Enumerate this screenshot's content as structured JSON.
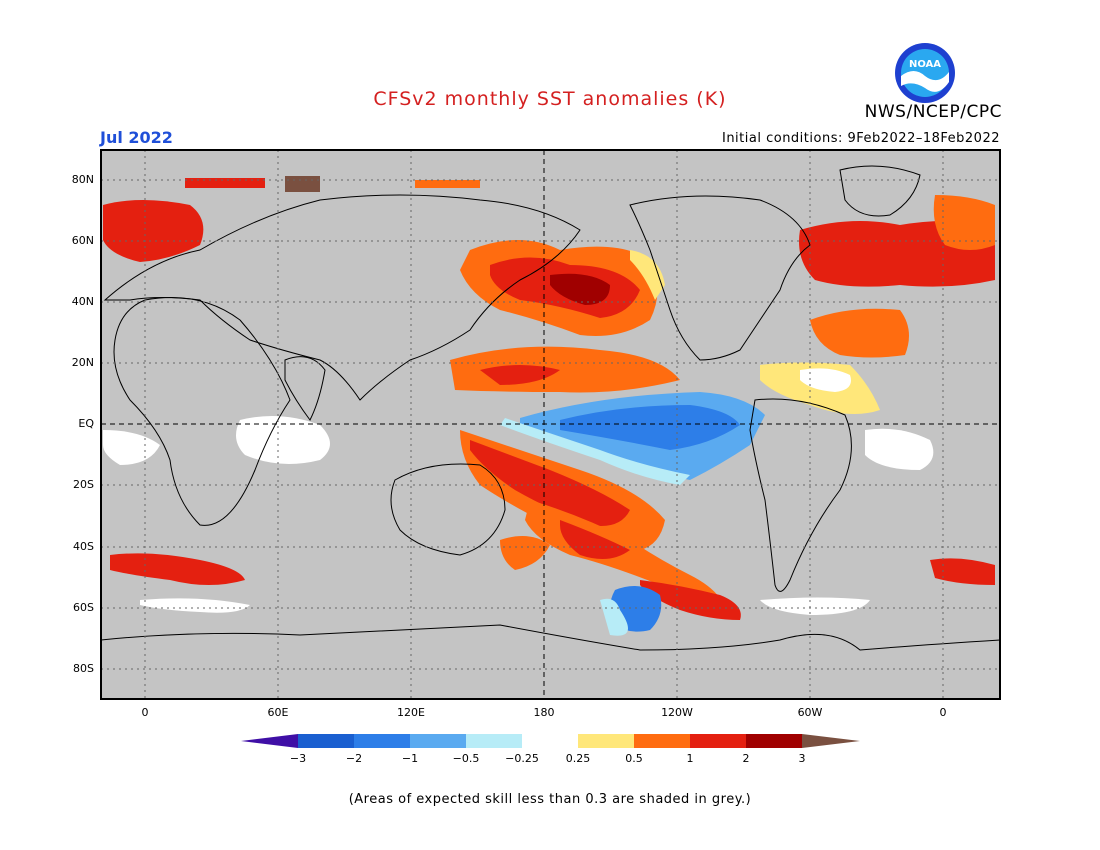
{
  "title": "CFSv2 monthly SST anomalies (K)",
  "month": "Jul 2022",
  "initial_conditions": "Initial conditions: 9Feb2022–18Feb2022",
  "agency": "NWS/NCEP/CPC",
  "logo_text": "NOAA",
  "lat_labels": [
    "80N",
    "60N",
    "40N",
    "20N",
    "EQ",
    "20S",
    "40S",
    "60S",
    "80S"
  ],
  "lon_labels": [
    "0",
    "60E",
    "120E",
    "180",
    "120W",
    "60W",
    "0"
  ],
  "colorbar": {
    "labels": [
      "−3",
      "−2",
      "−1",
      "−0.5",
      "−0.25",
      "0.25",
      "0.5",
      "1",
      "2",
      "3"
    ],
    "colors": [
      "#3f0fa6",
      "#1a5fd0",
      "#2d7ee8",
      "#5aaaf0",
      "#b7ecf7",
      "#ffffff",
      "#ffe77a",
      "#ff6c10",
      "#e42010",
      "#a00000",
      "#7a5040"
    ]
  },
  "note": "(Areas of expected skill less than 0.3 are shaded in grey.)",
  "colors": {
    "land_grey": "#c4c4c4",
    "title": "#d42020",
    "month": "#1f4fd8"
  }
}
